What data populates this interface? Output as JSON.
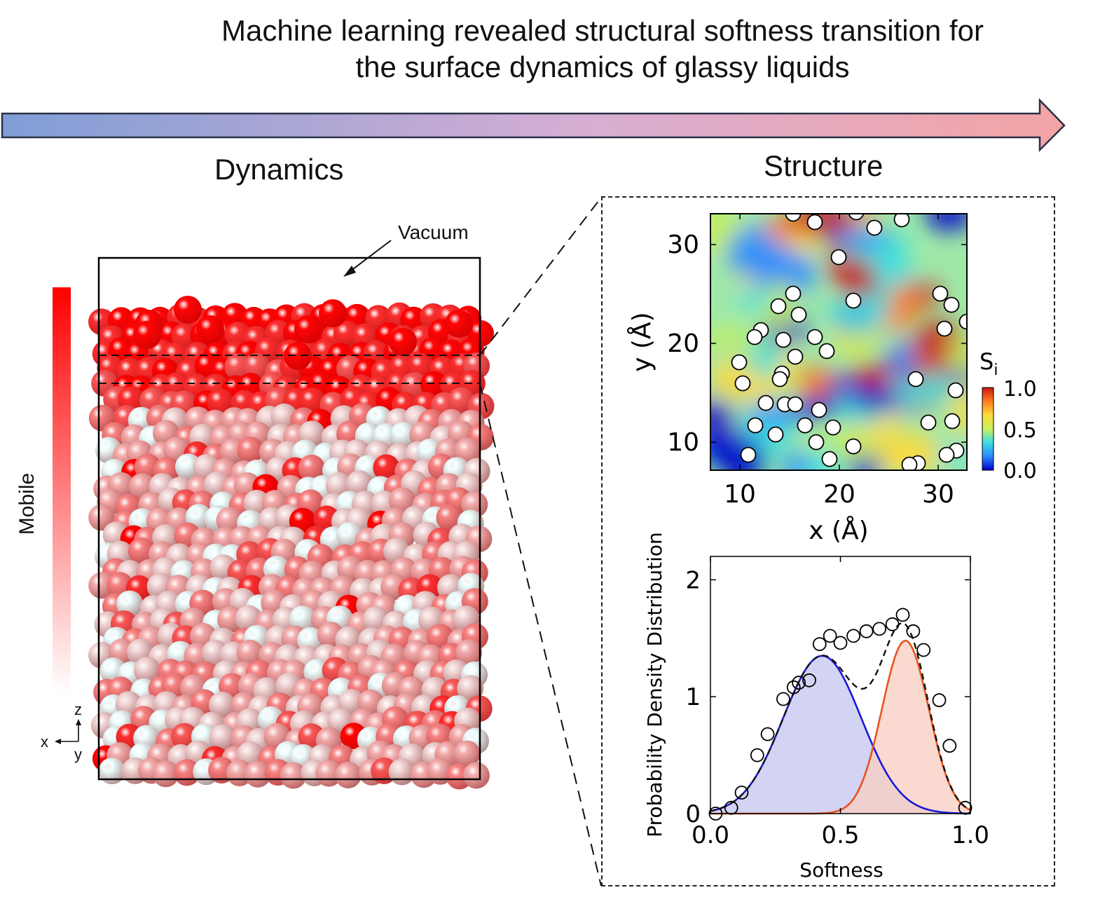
{
  "title": {
    "line1": "Machine learning revealed structural softness transition for",
    "line2": "the surface dynamics of glassy liquids"
  },
  "arrow": {
    "color_start": "#7f9ed6",
    "color_mid": "#d7aed3",
    "color_end": "#f4a4a4"
  },
  "sections": {
    "dynamics": "Dynamics",
    "structure": "Structure"
  },
  "dynamics": {
    "vacuum_label": "Vacuum",
    "mobility_label": "Mobile",
    "colorbar_top": "#ff0000",
    "colorbar_bottom": "#ffffff",
    "axes_triad": {
      "z": "z",
      "x": "x",
      "y": "y"
    }
  },
  "softness_map": {
    "colorbar_title": "S",
    "colorbar_subscript": "i",
    "colorbar_ticks": [
      "1.0",
      "0.5",
      "0.0"
    ],
    "xlabel": "x (Å)",
    "ylabel": "y (Å)",
    "xticks": [
      "10",
      "20",
      "30"
    ],
    "yticks": [
      "30",
      "20",
      "10"
    ],
    "colormap": [
      "#0000c8",
      "#2a8cff",
      "#3fe0e0",
      "#c8f05a",
      "#ffd93c",
      "#ff7a1e",
      "#c81414"
    ]
  },
  "chart_data": {
    "type": "line",
    "xlabel": "Softness",
    "ylabel": "Probability Density Distribution",
    "xlim": [
      0.0,
      1.0
    ],
    "ylim": [
      0.0,
      2.2
    ],
    "xticks": [
      "0.0",
      "0.5",
      "1.0"
    ],
    "yticks": [
      "0",
      "1",
      "2"
    ],
    "markers": {
      "x": [
        0.02,
        0.08,
        0.12,
        0.18,
        0.22,
        0.28,
        0.32,
        0.34,
        0.38,
        0.42,
        0.46,
        0.5,
        0.55,
        0.6,
        0.65,
        0.7,
        0.74,
        0.78,
        0.82,
        0.88,
        0.92,
        0.98
      ],
      "y": [
        0.0,
        0.05,
        0.18,
        0.5,
        0.68,
        0.98,
        1.08,
        1.12,
        1.14,
        1.45,
        1.52,
        1.46,
        1.52,
        1.56,
        1.58,
        1.62,
        1.7,
        1.56,
        1.4,
        0.97,
        0.58,
        0.05
      ]
    },
    "series": [
      {
        "color": "#1a1ad6",
        "fill": "#c8c8f0",
        "gaussian": {
          "amp": 1.35,
          "mu": 0.43,
          "sigma": 0.15
        }
      },
      {
        "color": "#e8541e",
        "fill": "#f8d0c4",
        "gaussian": {
          "amp": 1.48,
          "mu": 0.75,
          "sigma": 0.09
        }
      }
    ],
    "total": {
      "color": "#111111",
      "style": "dashed"
    }
  }
}
